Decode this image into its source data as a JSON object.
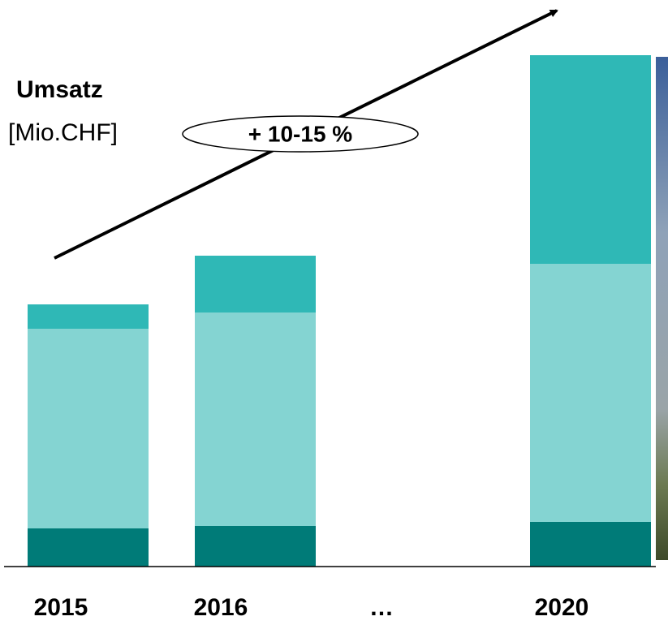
{
  "chart_data": {
    "type": "bar",
    "stacked": true,
    "title": "Umsatz",
    "subtitle": "[Mio.CHF]",
    "annotation": "+ 10-15 %",
    "categories": [
      "2015",
      "2016",
      "…",
      "2020"
    ],
    "series": [
      {
        "color": "#007b78",
        "values": [
          47,
          50,
          null,
          55
        ]
      },
      {
        "color": "#84d4d2",
        "values": [
          246,
          263,
          null,
          318
        ]
      },
      {
        "color": "#2fb8b6",
        "values": [
          30,
          70,
          null,
          257
        ]
      }
    ],
    "ylim": [
      0,
      630
    ]
  }
}
